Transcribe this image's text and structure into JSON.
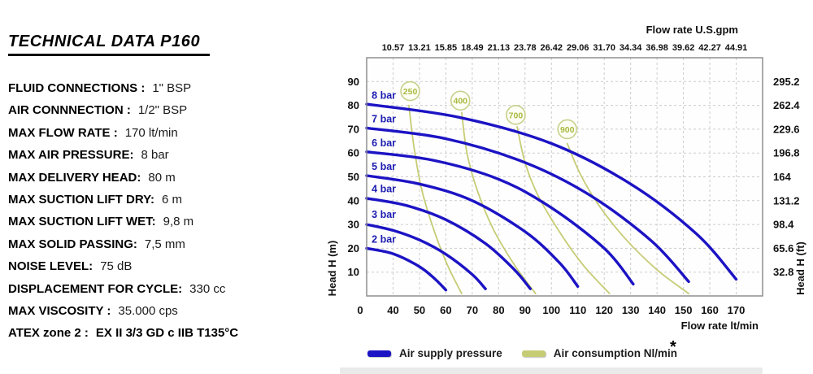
{
  "title": "TECHNICAL DATA  P160",
  "specs": [
    {
      "label": "FLUID CONNECTIONS :",
      "value": "1\" BSP",
      "bold": false
    },
    {
      "label": "AIR CONNNECTION :",
      "value": "1/2\" BSP",
      "bold": false
    },
    {
      "label": "MAX FLOW RATE :",
      "value": "170 lt/min",
      "bold": false
    },
    {
      "label": "MAX AIR PRESSURE:",
      "value": "8 bar",
      "bold": false
    },
    {
      "label": "MAX DELIVERY HEAD:",
      "value": "80 m",
      "bold": false
    },
    {
      "label": "MAX SUCTION LIFT DRY:",
      "value": "6 m",
      "bold": false
    },
    {
      "label": "MAX SUCTION LIFT WET:",
      "value": "9,8 m",
      "bold": false
    },
    {
      "label": "MAX SOLID PASSING:",
      "value": "7,5 mm",
      "bold": false
    },
    {
      "label": "NOISE LEVEL:",
      "value": "75 dB",
      "bold": false
    },
    {
      "label": "DISPLACEMENT FOR  CYCLE:",
      "value": "330 cc",
      "bold": false
    },
    {
      "label": "MAX VISCOSITY :",
      "value": "35.000 cps",
      "bold": false
    },
    {
      "label": "ATEX zone 2 :",
      "value": "EX II 3/3 GD c IIB  T135°C",
      "bold": true
    }
  ],
  "legend": {
    "pressure_label": "Air supply pressure",
    "consumption_label": "Air consumption  Nl/min",
    "footnote_marker": "*"
  },
  "chart_data": {
    "type": "line",
    "x_bottom": {
      "title": "Flow rate  lt/min",
      "zero_label": "0",
      "ticks": [
        40,
        50,
        60,
        70,
        80,
        90,
        100,
        110,
        120,
        130,
        140,
        150,
        160,
        170
      ],
      "range": [
        30,
        180
      ],
      "grid": true
    },
    "x_top": {
      "title": "Flow rate U.S.gpm",
      "tick_labels": [
        "10.57",
        "13.21",
        "15.85",
        "18.49",
        "21.13",
        "23.78",
        "26.42",
        "29.06",
        "31.70",
        "34.34",
        "36.98",
        "39.62",
        "42.27",
        "44.91"
      ],
      "at_flows": [
        40,
        50,
        60,
        70,
        80,
        90,
        100,
        110,
        120,
        130,
        140,
        150,
        160,
        170
      ]
    },
    "y_left": {
      "title": "Head H (m)",
      "ticks": [
        10,
        20,
        30,
        40,
        50,
        60,
        70,
        80,
        90
      ],
      "range": [
        0,
        100
      ],
      "grid": true
    },
    "y_right": {
      "title": "Head H (ft)",
      "tick_labels": [
        "32.8",
        "65.6",
        "98.4",
        "131.2",
        "164",
        "196.8",
        "229.6",
        "262.4",
        "295.2"
      ],
      "at_heads": [
        10,
        20,
        30,
        40,
        50,
        60,
        70,
        80,
        90
      ]
    },
    "pressure_series": [
      {
        "name": "8 bar",
        "label_at": [
          36.5,
          84.2
        ],
        "points": [
          [
            30,
            80.5
          ],
          [
            65,
            75
          ],
          [
            100,
            64
          ],
          [
            130,
            47
          ],
          [
            155,
            26
          ],
          [
            170,
            7
          ]
        ]
      },
      {
        "name": "7 bar",
        "label_at": [
          36.5,
          74.2
        ],
        "points": [
          [
            30,
            70.5
          ],
          [
            60,
            66
          ],
          [
            90,
            56
          ],
          [
            115,
            42
          ],
          [
            138,
            23
          ],
          [
            152,
            6
          ]
        ]
      },
      {
        "name": "6 bar",
        "label_at": [
          36.5,
          64.2
        ],
        "points": [
          [
            30,
            60.5
          ],
          [
            55,
            57
          ],
          [
            80,
            49
          ],
          [
            100,
            37
          ],
          [
            120,
            20
          ],
          [
            131,
            5
          ]
        ]
      },
      {
        "name": "5 bar",
        "label_at": [
          36.5,
          54.2
        ],
        "points": [
          [
            30,
            50.5
          ],
          [
            50,
            47
          ],
          [
            70,
            40
          ],
          [
            90,
            27
          ],
          [
            103,
            14
          ],
          [
            110,
            4
          ]
        ]
      },
      {
        "name": "4 bar",
        "label_at": [
          36.5,
          44.8
        ],
        "points": [
          [
            30,
            41
          ],
          [
            45,
            38
          ],
          [
            60,
            32
          ],
          [
            75,
            22
          ],
          [
            86,
            11
          ],
          [
            92,
            3
          ]
        ]
      },
      {
        "name": "3 bar",
        "label_at": [
          36.5,
          34.2
        ],
        "points": [
          [
            30,
            30
          ],
          [
            40,
            27.5
          ],
          [
            50,
            23.5
          ],
          [
            60,
            17.5
          ],
          [
            70,
            9
          ],
          [
            75,
            3
          ]
        ]
      },
      {
        "name": "2 bar",
        "label_at": [
          36.5,
          23.8
        ],
        "points": [
          [
            30,
            20
          ],
          [
            40,
            17.7
          ],
          [
            50,
            12.3
          ],
          [
            56,
            7
          ],
          [
            60,
            2.5
          ]
        ]
      }
    ],
    "consumption_series": [
      {
        "name": "250",
        "bubble_at": [
          46.5,
          86
        ],
        "points": [
          [
            46,
            80
          ],
          [
            48,
            62
          ],
          [
            51,
            44
          ],
          [
            56,
            26
          ],
          [
            61,
            12
          ],
          [
            66,
            1
          ]
        ]
      },
      {
        "name": "400",
        "bubble_at": [
          65.5,
          82
        ],
        "points": [
          [
            66,
            77
          ],
          [
            68,
            60
          ],
          [
            72,
            44
          ],
          [
            78,
            28
          ],
          [
            86,
            13
          ],
          [
            94,
            1
          ]
        ]
      },
      {
        "name": "700",
        "bubble_at": [
          86.5,
          76
        ],
        "points": [
          [
            87,
            71
          ],
          [
            90,
            56
          ],
          [
            95,
            42
          ],
          [
            103,
            27
          ],
          [
            112,
            13
          ],
          [
            122,
            1
          ]
        ]
      },
      {
        "name": "900",
        "bubble_at": [
          106,
          70
        ],
        "points": [
          [
            106,
            64
          ],
          [
            111,
            51
          ],
          [
            118,
            38
          ],
          [
            128,
            24
          ],
          [
            140,
            11
          ],
          [
            152,
            1
          ]
        ]
      }
    ],
    "colors": {
      "pressure": "#1c13c4",
      "pressure_label": "#1d1db0",
      "consumption": "#c6cc74",
      "bubble_stroke": "#c7d08a",
      "bubble_fill": "#fdfef5",
      "bubble_text": "#a9b93f",
      "grid": "#cccccc",
      "frame": "#8f8f8f",
      "tick_text": "#111111"
    }
  }
}
